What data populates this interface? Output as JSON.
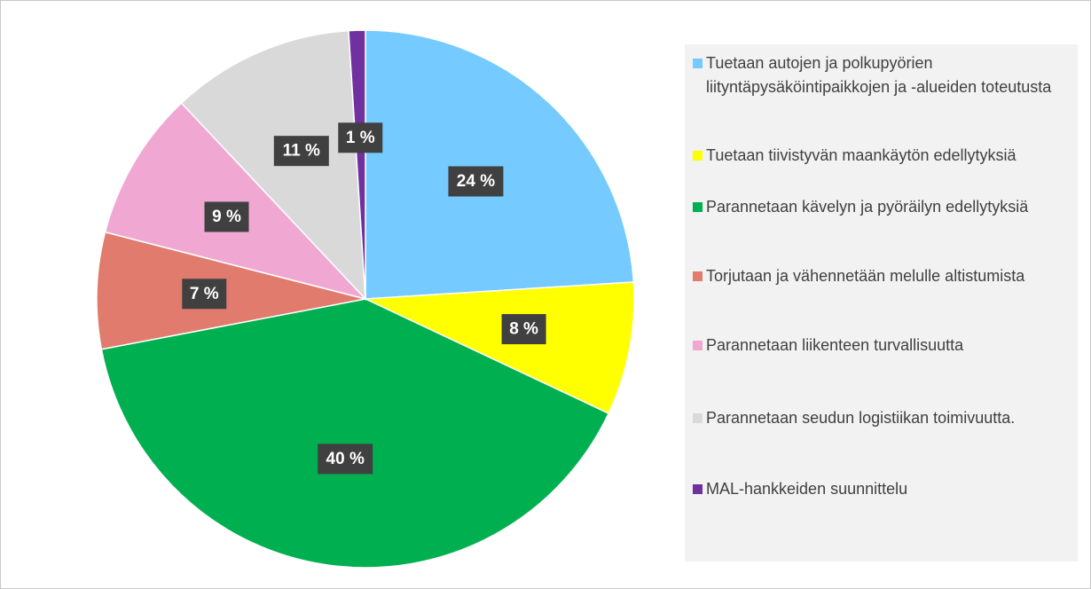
{
  "chart_data": {
    "type": "pie",
    "categories": [
      "Tuetaan autojen ja polkupyörien liityntäpysäköintipaikkojen ja -alueiden toteutusta",
      "Tuetaan tiivistyvän maankäytön edellytyksiä",
      "Parannetaan kävelyn ja pyöräilyn edellytyksiä",
      "Torjutaan ja vähennetään melulle altistumista",
      "Parannetaan liikenteen turvallisuutta",
      "Parannetaan seudun logistiikan toimivuutta.",
      "MAL-hankkeiden suunnittelu"
    ],
    "values": [
      24,
      8,
      40,
      7,
      9,
      11,
      1
    ],
    "value_labels": [
      "24 %",
      "8 %",
      "40 %",
      "7 %",
      "9 %",
      "11 %",
      "1 %"
    ],
    "colors": [
      "#75caff",
      "#ffff00",
      "#00b050",
      "#e07b6e",
      "#f0a8d2",
      "#d9d9d9",
      "#7030a0"
    ],
    "legend": "right"
  }
}
